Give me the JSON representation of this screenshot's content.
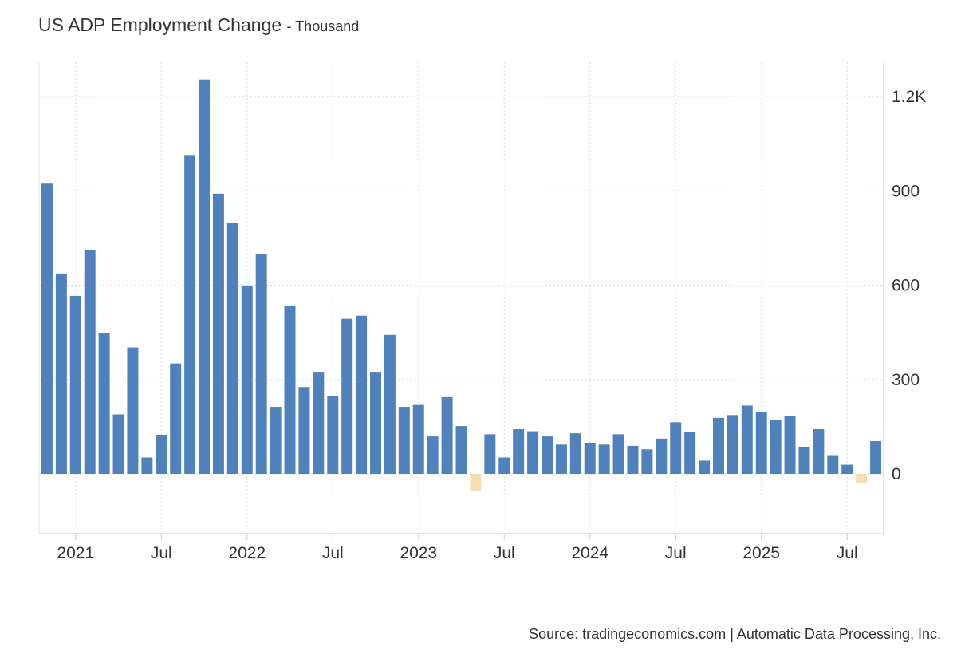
{
  "header": {
    "title": "US ADP Employment Change",
    "subtitle": "- Thousand"
  },
  "footer": {
    "source": "Source: tradingeconomics.com | Automatic Data Processing, Inc."
  },
  "colors": {
    "positive": "#4f81bd",
    "negative": "#f5deb3",
    "grid": "#d9d9d9"
  },
  "chart_data": {
    "type": "bar",
    "title": "US ADP Employment Change",
    "subtitle": "Thousand",
    "categories": [
      "2020-11",
      "2020-12",
      "2021-01",
      "2021-02",
      "2021-03",
      "2021-04",
      "2021-05",
      "2021-06",
      "2021-07",
      "2021-08",
      "2021-09",
      "2021-10",
      "2021-11",
      "2021-12",
      "2022-01",
      "2022-02",
      "2022-03",
      "2022-04",
      "2022-05",
      "2022-06",
      "2022-07",
      "2022-08",
      "2022-09",
      "2022-10",
      "2022-11",
      "2022-12",
      "2023-01",
      "2023-02",
      "2023-03",
      "2023-04",
      "2023-05",
      "2023-06",
      "2023-07",
      "2023-08",
      "2023-09",
      "2023-10",
      "2023-11",
      "2023-12",
      "2024-01",
      "2024-02",
      "2024-03",
      "2024-04",
      "2024-05",
      "2024-06",
      "2024-07",
      "2024-08",
      "2024-09",
      "2024-10",
      "2024-11",
      "2024-12",
      "2025-01",
      "2025-02",
      "2025-03",
      "2025-04",
      "2025-05",
      "2025-06",
      "2025-07",
      "2025-08",
      "2025-09"
    ],
    "values": [
      923,
      637,
      566,
      713,
      447,
      189,
      402,
      52,
      122,
      351,
      1014,
      1254,
      891,
      797,
      597,
      700,
      213,
      533,
      276,
      322,
      246,
      493,
      503,
      322,
      442,
      213,
      219,
      119,
      244,
      152,
      -55,
      126,
      52,
      142,
      133,
      119,
      93,
      129,
      99,
      93,
      126,
      89,
      78,
      112,
      164,
      132,
      42,
      178,
      187,
      217,
      198,
      171,
      183,
      84,
      142,
      57,
      29,
      -28,
      104
    ],
    "x_tick_labels": [
      {
        "label": "2021",
        "date": "2021-01"
      },
      {
        "label": "Jul",
        "date": "2021-07"
      },
      {
        "label": "2022",
        "date": "2022-01"
      },
      {
        "label": "Jul",
        "date": "2022-07"
      },
      {
        "label": "2023",
        "date": "2023-01"
      },
      {
        "label": "Jul",
        "date": "2023-07"
      },
      {
        "label": "2024",
        "date": "2024-01"
      },
      {
        "label": "Jul",
        "date": "2024-07"
      },
      {
        "label": "2025",
        "date": "2025-01"
      },
      {
        "label": "Jul",
        "date": "2025-07"
      }
    ],
    "y_ticks": [
      {
        "value": 0,
        "label": "0"
      },
      {
        "value": 300,
        "label": "300"
      },
      {
        "value": 600,
        "label": "600"
      },
      {
        "value": 900,
        "label": "900"
      },
      {
        "value": 1200,
        "label": "1.2K"
      }
    ],
    "ylim": [
      -200,
      1300
    ],
    "y_axis_position": "right",
    "grid": true,
    "legend": "none"
  }
}
